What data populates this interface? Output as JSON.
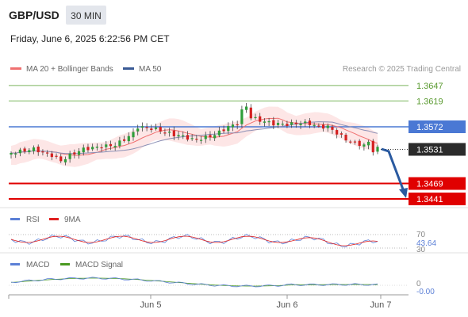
{
  "header": {
    "symbol": "GBP/USD",
    "timeframe": "30 MIN",
    "datetime": "Friday, June 6, 2025 6:22:56 PM CET"
  },
  "legend": {
    "ma20_label": "MA 20 + Bollinger Bands",
    "ma50_label": "MA 50",
    "ma20_color": "#f07070",
    "ma50_color": "#3a5a95"
  },
  "watermark": "Research © 2025 Trading Central",
  "levels": [
    {
      "value": "1.3647",
      "price": 1.3647,
      "style": "green-line"
    },
    {
      "value": "1.3619",
      "price": 1.3619,
      "style": "green-line"
    },
    {
      "value": "1.3572",
      "price": 1.3572,
      "style": "blue-badge"
    },
    {
      "value": "1.3531",
      "price": 1.3531,
      "style": "dark-badge"
    },
    {
      "value": "1.3469",
      "price": 1.3469,
      "style": "red-badge"
    },
    {
      "value": "1.3441",
      "price": 1.3441,
      "style": "red-badge"
    }
  ],
  "rsi": {
    "label": "RSI",
    "ma_label": "9MA",
    "level_70": "70",
    "level_30": "30",
    "current": "43.64",
    "rsi_color": "#5b7fd6",
    "ma_color": "#e02020"
  },
  "macd": {
    "label": "MACD",
    "signal_label": "MACD Signal",
    "zero": "0",
    "current": "-0.00",
    "macd_color": "#5b7fd6",
    "signal_color": "#4a9a20"
  },
  "xaxis": {
    "labels": [
      "Jun 5",
      "Jun 6",
      "Jun 7"
    ]
  },
  "colors": {
    "up_candle": "#2f9e3a",
    "down_candle": "#d42020",
    "green_level": "#7ab55c",
    "blue_level": "#4a78d4",
    "red_level": "#e00000",
    "dark_badge": "#2b2b2b",
    "arrow": "#2a5aa0"
  }
}
